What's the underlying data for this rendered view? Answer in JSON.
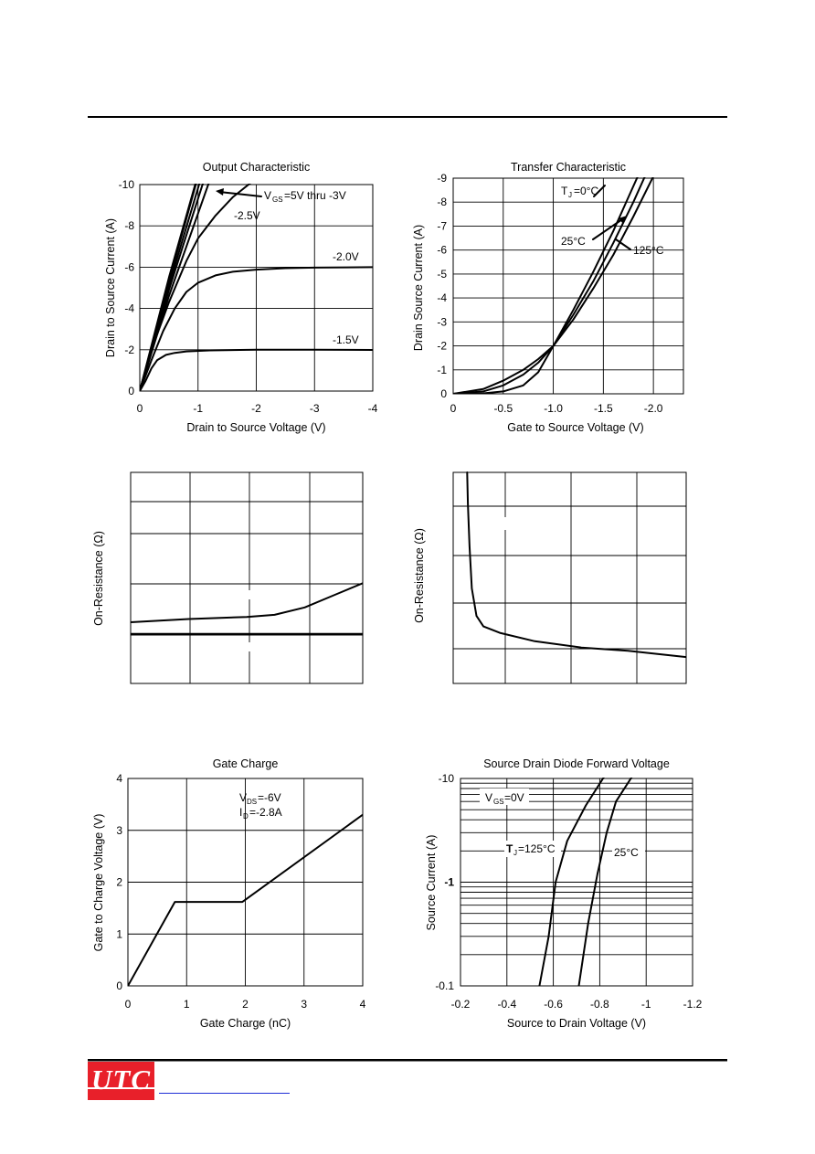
{
  "chart_data": [
    {
      "type": "line",
      "title": "Output Characteristic",
      "xlabel": "Drain to Source Voltage (V)",
      "ylabel": "Drain to Source Current (A)",
      "xlim": [
        0,
        -4
      ],
      "ylim": [
        0,
        -10
      ],
      "xticks": [
        "0",
        "-1",
        "-2",
        "-3",
        "-4"
      ],
      "yticks": [
        "0",
        "-2",
        "-4",
        "-6",
        "-8",
        "-10"
      ],
      "grid": true,
      "annotations": [
        "V",
        "GS",
        "=5V thru -3V",
        "-2.5V",
        "-2.0V",
        "-1.5V"
      ],
      "series": [
        {
          "values": [
            [
              0,
              0
            ],
            [
              -0.5,
              -5.5
            ],
            [
              -1.0,
              -10.5
            ]
          ]
        },
        {
          "values": [
            [
              0,
              0
            ],
            [
              -0.5,
              -5.3
            ],
            [
              -1.0,
              -10.4
            ]
          ]
        },
        {
          "values": [
            [
              0,
              0
            ],
            [
              -0.5,
              -5.1
            ],
            [
              -1.05,
              -10.3
            ]
          ]
        },
        {
          "values": [
            [
              0,
              0
            ],
            [
              -0.5,
              -4.9
            ],
            [
              -1.1,
              -10.2
            ]
          ]
        },
        {
          "values": [
            [
              0,
              0
            ],
            [
              -0.5,
              -4.6
            ],
            [
              -1.2,
              -10.2
            ]
          ]
        },
        {
          "values": [
            [
              0,
              0
            ],
            [
              -0.2,
              -2.0
            ],
            [
              -0.5,
              -4.3
            ],
            [
              -0.8,
              -6.3
            ],
            [
              -1.0,
              -7.4
            ],
            [
              -1.3,
              -8.5
            ],
            [
              -1.6,
              -9.4
            ],
            [
              -2.0,
              -10.3
            ]
          ]
        },
        {
          "values": [
            [
              0,
              0
            ],
            [
              -0.2,
              -1.5
            ],
            [
              -0.4,
              -2.9
            ],
            [
              -0.6,
              -4.0
            ],
            [
              -0.8,
              -4.8
            ],
            [
              -1.0,
              -5.25
            ],
            [
              -1.3,
              -5.6
            ],
            [
              -1.6,
              -5.78
            ],
            [
              -2.0,
              -5.88
            ],
            [
              -2.5,
              -5.95
            ],
            [
              -3.0,
              -5.98
            ],
            [
              -4.0,
              -6.0
            ]
          ]
        },
        {
          "values": [
            [
              0,
              0
            ],
            [
              -0.1,
              -0.5
            ],
            [
              -0.2,
              -1.1
            ],
            [
              -0.3,
              -1.5
            ],
            [
              -0.45,
              -1.75
            ],
            [
              -0.6,
              -1.85
            ],
            [
              -0.8,
              -1.92
            ],
            [
              -1.2,
              -1.97
            ],
            [
              -2.0,
              -2.0
            ],
            [
              -3.0,
              -2.0
            ],
            [
              -4.0,
              -1.99
            ]
          ]
        }
      ]
    },
    {
      "type": "line",
      "title": "Transfer Characteristic",
      "xlabel": "Gate to Source Voltage (V)",
      "ylabel": "Drain Source Current (A)",
      "xlim": [
        0,
        -2.3
      ],
      "ylim": [
        0,
        -9
      ],
      "xticks": [
        "0",
        "-0.5",
        "-1.0",
        "-1.5",
        "-2.0"
      ],
      "yticks": [
        "0",
        "-1",
        "-2",
        "-3",
        "-4",
        "-5",
        "-6",
        "-7",
        "-8",
        "-9"
      ],
      "grid": true,
      "annotations": [
        "T",
        "J",
        "=0°C",
        "25°C",
        "125°C"
      ],
      "series": [
        {
          "name": "0°C",
          "values": [
            [
              0,
              0
            ],
            [
              -0.3,
              -0.02
            ],
            [
              -0.5,
              -0.1
            ],
            [
              -0.7,
              -0.35
            ],
            [
              -0.85,
              -0.9
            ],
            [
              -1.0,
              -2.0
            ],
            [
              -1.2,
              -3.5
            ],
            [
              -1.4,
              -5.1
            ],
            [
              -1.6,
              -6.8
            ],
            [
              -1.75,
              -8.2
            ],
            [
              -1.9,
              -9.6
            ]
          ]
        },
        {
          "name": "25°C",
          "values": [
            [
              0,
              0
            ],
            [
              -0.3,
              -0.1
            ],
            [
              -0.5,
              -0.35
            ],
            [
              -0.7,
              -0.8
            ],
            [
              -0.85,
              -1.3
            ],
            [
              -1.0,
              -2.0
            ],
            [
              -1.2,
              -3.3
            ],
            [
              -1.4,
              -4.7
            ],
            [
              -1.6,
              -6.3
            ],
            [
              -1.8,
              -8.0
            ],
            [
              -1.95,
              -9.4
            ]
          ]
        },
        {
          "name": "125°C",
          "values": [
            [
              0,
              0
            ],
            [
              -0.3,
              -0.2
            ],
            [
              -0.5,
              -0.55
            ],
            [
              -0.7,
              -1.0
            ],
            [
              -0.85,
              -1.45
            ],
            [
              -1.0,
              -2.0
            ],
            [
              -1.2,
              -3.1
            ],
            [
              -1.4,
              -4.4
            ],
            [
              -1.6,
              -5.8
            ],
            [
              -1.8,
              -7.4
            ],
            [
              -2.05,
              -9.5
            ]
          ]
        }
      ]
    },
    {
      "type": "line",
      "title": "",
      "xlabel": "",
      "ylabel": "On-Resistance (Ω)",
      "xlim": [
        0,
        1
      ],
      "ylim": [
        0,
        1
      ],
      "grid": true,
      "series": [
        {
          "values": [
            [
              0,
              0.29
            ],
            [
              0.25,
              0.305
            ],
            [
              0.5,
              0.315
            ],
            [
              0.62,
              0.325
            ],
            [
              0.75,
              0.36
            ],
            [
              0.88,
              0.42
            ],
            [
              1.0,
              0.475
            ]
          ]
        },
        {
          "values": [
            [
              0,
              0.235
            ],
            [
              1.0,
              0.235
            ]
          ]
        }
      ]
    },
    {
      "type": "line",
      "title": "",
      "xlabel": "",
      "ylabel": "On-Resistance (Ω)",
      "xlim": [
        0,
        1
      ],
      "ylim": [
        0,
        1
      ],
      "grid": true,
      "series": [
        {
          "values": [
            [
              0.06,
              1.0
            ],
            [
              0.063,
              0.85
            ],
            [
              0.07,
              0.65
            ],
            [
              0.08,
              0.45
            ],
            [
              0.1,
              0.32
            ],
            [
              0.13,
              0.27
            ],
            [
              0.2,
              0.24
            ],
            [
              0.35,
              0.2
            ],
            [
              0.55,
              0.17
            ],
            [
              0.75,
              0.155
            ],
            [
              1.0,
              0.125
            ]
          ]
        }
      ]
    },
    {
      "type": "line",
      "title": "Gate Charge",
      "xlabel": "Gate Charge (nC)",
      "ylabel": "Gate to Charge Voltage (V)",
      "xlim": [
        0,
        4
      ],
      "ylim": [
        0,
        4
      ],
      "xticks": [
        "0",
        "1",
        "2",
        "3",
        "4"
      ],
      "yticks": [
        "0",
        "1",
        "2",
        "3",
        "4"
      ],
      "grid": true,
      "annotations": [
        "V",
        "DS",
        "=-6V",
        "I",
        "D",
        "=-2.8A"
      ],
      "series": [
        {
          "values": [
            [
              0,
              0
            ],
            [
              0.8,
              1.62
            ],
            [
              1.95,
              1.62
            ],
            [
              4.0,
              3.3
            ]
          ]
        }
      ]
    },
    {
      "type": "line",
      "title": "Source Drain Diode Forward Voltage",
      "xlabel": "Source to Drain Voltage (V)",
      "ylabel": "Source Current (A)",
      "xlim": [
        -0.2,
        -1.2
      ],
      "ylim": [
        -0.1,
        -10
      ],
      "yscale": "log",
      "xticks": [
        "-0.2",
        "-0.4",
        "-0.6",
        "-0.8",
        "-1",
        "-1.2"
      ],
      "yticks": [
        "-0.1",
        "-1",
        "-10"
      ],
      "grid": true,
      "annotations": [
        "V",
        "GS",
        "=0V",
        "T",
        "J",
        "=125°C",
        "25°C"
      ],
      "series": [
        {
          "name": "125°C",
          "values": [
            [
              -0.54,
              -0.1
            ],
            [
              -0.58,
              -0.3
            ],
            [
              -0.61,
              -1.0
            ],
            [
              -0.66,
              -2.5
            ],
            [
              -0.74,
              -5.5
            ],
            [
              -0.82,
              -10.5
            ]
          ]
        },
        {
          "name": "25°C",
          "values": [
            [
              -0.71,
              -0.1
            ],
            [
              -0.75,
              -0.4
            ],
            [
              -0.79,
              -1.2
            ],
            [
              -0.83,
              -3.0
            ],
            [
              -0.87,
              -6.0
            ],
            [
              -0.94,
              -10.5
            ]
          ]
        }
      ]
    }
  ]
}
